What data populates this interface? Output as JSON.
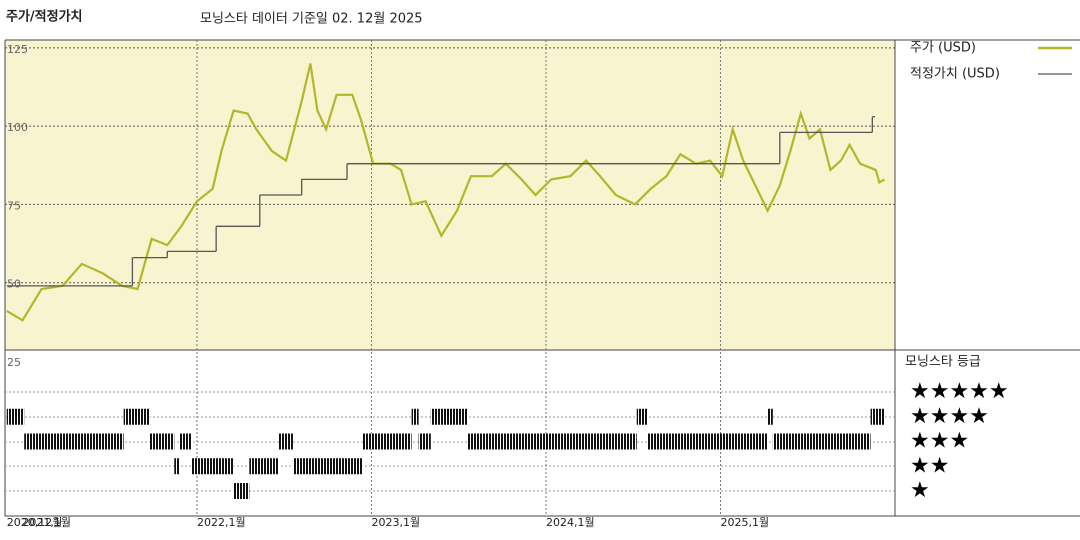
{
  "chart_data": {
    "type": "line",
    "title": "주가/적정가치",
    "subtitle": "모닝스타 데이터 기준일 02. 12월 2025",
    "xlim": [
      2020.9,
      2026.0
    ],
    "xticks": [
      {
        "value": 2020.91,
        "label": "2020,12월"
      },
      {
        "value": 2021,
        "label": "2021,1월"
      },
      {
        "value": 2022,
        "label": "2022,1월"
      },
      {
        "value": 2023,
        "label": "2023,1월"
      },
      {
        "value": 2024,
        "label": "2024,1월"
      },
      {
        "value": 2025,
        "label": "2025,1월"
      }
    ],
    "ylim": [
      25,
      127.5
    ],
    "yticks": [
      25,
      50,
      75,
      100,
      125
    ],
    "grid": true,
    "series": [
      {
        "name": "주가 (USD)",
        "color": "#b3b62a",
        "x": [
          2020.91,
          2021.0,
          2021.11,
          2021.23,
          2021.34,
          2021.46,
          2021.57,
          2021.66,
          2021.74,
          2021.83,
          2021.91,
          2022.0,
          2022.09,
          2022.14,
          2022.21,
          2022.29,
          2022.34,
          2022.43,
          2022.51,
          2022.6,
          2022.65,
          2022.69,
          2022.74,
          2022.8,
          2022.89,
          2022.94,
          2023.01,
          2023.11,
          2023.17,
          2023.23,
          2023.31,
          2023.4,
          2023.49,
          2023.57,
          2023.69,
          2023.77,
          2023.86,
          2023.94,
          2024.03,
          2024.14,
          2024.23,
          2024.31,
          2024.4,
          2024.51,
          2024.6,
          2024.69,
          2024.77,
          2024.86,
          2024.94,
          2025.01,
          2025.07,
          2025.13,
          2025.2,
          2025.27,
          2025.34,
          2025.4,
          2025.46,
          2025.51,
          2025.57,
          2025.63,
          2025.69,
          2025.74,
          2025.8,
          2025.89,
          2025.91,
          2025.94
        ],
        "values": [
          41,
          38,
          48,
          49,
          56,
          53,
          49,
          48,
          64,
          62,
          68,
          76,
          80,
          92,
          105,
          104,
          99,
          92,
          89,
          108,
          120,
          105,
          99,
          110,
          110,
          102,
          88,
          88,
          86,
          75,
          76,
          65,
          73,
          84,
          84,
          88,
          83,
          78,
          83,
          84,
          89,
          84,
          78,
          75,
          80,
          84,
          91,
          88,
          89,
          84,
          99,
          89,
          81,
          73,
          81,
          92,
          104,
          96,
          99,
          86,
          89,
          94,
          88,
          86,
          82,
          83
        ]
      },
      {
        "name": "적정가치 (USD)",
        "color": "#555555",
        "drawstyle": "steps-post",
        "x": [
          2020.91,
          2021.63,
          2021.83,
          2022.11,
          2022.36,
          2022.6,
          2022.86,
          2025.34,
          2025.87
        ],
        "values": [
          49,
          58,
          60,
          68,
          78,
          83,
          88,
          98,
          103
        ]
      }
    ],
    "rating_title": "모닝스타 등급",
    "rating_legend": [
      "★★★★★",
      "★★★★",
      "★★★",
      "★★",
      "★"
    ],
    "rating": {
      "x": [
        2020.91,
        2021.01,
        2021.58,
        2021.73,
        2021.87,
        2021.9,
        2021.97,
        2022.21,
        2022.3,
        2022.47,
        2022.55,
        2022.95,
        2023.23,
        2023.27,
        2023.34,
        2023.55,
        2024.52,
        2024.58,
        2025.27,
        2025.3,
        2025.86
      ],
      "values": [
        4,
        3,
        4,
        3,
        2,
        3,
        2,
        1,
        2,
        3,
        2,
        3,
        4,
        3,
        4,
        3,
        4,
        3,
        4,
        3,
        4
      ]
    }
  }
}
